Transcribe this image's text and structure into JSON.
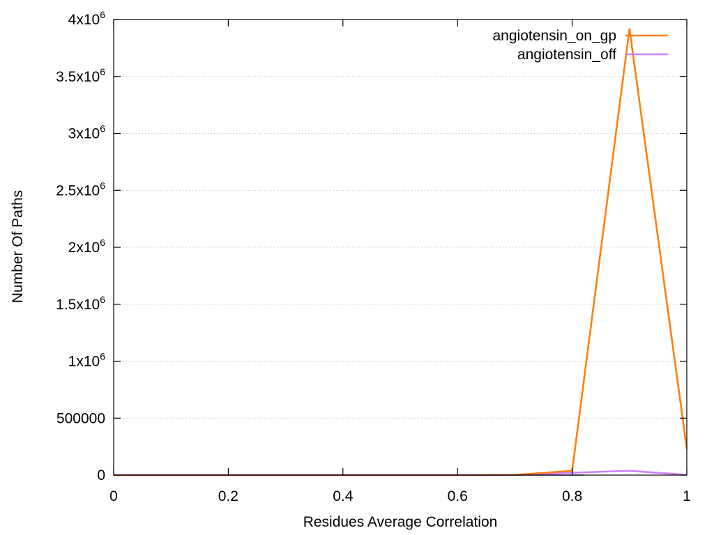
{
  "chart_data": {
    "type": "line",
    "xlabel": "Residues Average Correlation",
    "ylabel": "Number Of Paths",
    "xlim": [
      0,
      1
    ],
    "ylim": [
      0,
      4000000
    ],
    "x_ticks": [
      {
        "value": 0,
        "label": "0"
      },
      {
        "value": 0.2,
        "label": "0.2"
      },
      {
        "value": 0.4,
        "label": "0.4"
      },
      {
        "value": 0.6,
        "label": "0.6"
      },
      {
        "value": 0.8,
        "label": "0.8"
      },
      {
        "value": 1,
        "label": "1"
      }
    ],
    "y_ticks": [
      {
        "value": 0,
        "label": "0",
        "sup": ""
      },
      {
        "value": 500000,
        "label": "500000",
        "sup": ""
      },
      {
        "value": 1000000,
        "label": "1x10",
        "sup": "6"
      },
      {
        "value": 1500000,
        "label": "1.5x10",
        "sup": "6"
      },
      {
        "value": 2000000,
        "label": "2x10",
        "sup": "6"
      },
      {
        "value": 2500000,
        "label": "2.5x10",
        "sup": "6"
      },
      {
        "value": 3000000,
        "label": "3x10",
        "sup": "6"
      },
      {
        "value": 3500000,
        "label": "3.5x10",
        "sup": "6"
      },
      {
        "value": 4000000,
        "label": "4x10",
        "sup": "6"
      }
    ],
    "grid": "horizontal dotted",
    "legend_position": "top-right",
    "series": [
      {
        "name": "angiotensin_on_gp",
        "color": "#ff7f0e",
        "x": [
          0,
          0.1,
          0.2,
          0.3,
          0.4,
          0.5,
          0.6,
          0.7,
          0.8,
          0.9,
          1.0
        ],
        "y": [
          0,
          0,
          0,
          0,
          0,
          0,
          0,
          2000,
          38000,
          3920000,
          230000
        ]
      },
      {
        "name": "angiotensin_off",
        "color": "#cc80ff",
        "x": [
          0,
          0.1,
          0.2,
          0.3,
          0.4,
          0.5,
          0.6,
          0.7,
          0.8,
          0.9,
          1.0
        ],
        "y": [
          0,
          0,
          0,
          0,
          0,
          0,
          0,
          500,
          20000,
          38000,
          2000
        ]
      }
    ]
  }
}
